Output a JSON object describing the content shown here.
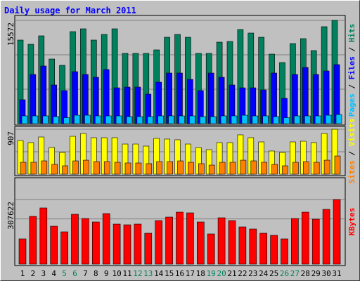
{
  "chart_data": {
    "type": "bar",
    "title": "Daily usage for March 2011",
    "legend_separator": " / ",
    "categories": [
      "1",
      "2",
      "3",
      "4",
      "5",
      "6",
      "7",
      "8",
      "9",
      "10",
      "11",
      "12",
      "13",
      "14",
      "15",
      "16",
      "17",
      "18",
      "19",
      "20",
      "21",
      "22",
      "23",
      "24",
      "25",
      "26",
      "27",
      "28",
      "29",
      "30",
      "31"
    ],
    "category_colors": [
      "#000000",
      "#000000",
      "#000000",
      "#000000",
      "#00805c",
      "#00805c",
      "#000000",
      "#000000",
      "#000000",
      "#000000",
      "#000000",
      "#00805c",
      "#00805c",
      "#000000",
      "#000000",
      "#000000",
      "#000000",
      "#000000",
      "#00805c",
      "#00805c",
      "#000000",
      "#000000",
      "#000000",
      "#000000",
      "#000000",
      "#00805c",
      "#00805c",
      "#000000",
      "#000000",
      "#000000",
      "#000000"
    ],
    "panels": [
      {
        "ylim": [
          0,
          15572
        ],
        "yticks": [
          15572
        ],
        "series": [
          {
            "name": "Hits",
            "color": "#00805c",
            "values": [
              12606,
              11970,
              13241,
              9746,
              8792,
              13877,
              14301,
              12606,
              13453,
              14301,
              10593,
              10593,
              10593,
              11123,
              13029,
              13453,
              13029,
              10593,
              10593,
              12288,
              12394,
              14195,
              13665,
              13029,
              10487,
              9216,
              12076,
              12818,
              11017,
              14619,
              15572
            ]
          },
          {
            "name": "Files",
            "color": "#0000ff",
            "values": [
              3602,
              7415,
              8686,
              5826,
              4979,
              7839,
              7415,
              6992,
              8157,
              5402,
              5508,
              5508,
              4449,
              6250,
              7627,
              7627,
              6674,
              4979,
              7627,
              6992,
              5826,
              5402,
              5402,
              5085,
              7627,
              3814,
              7415,
              8475,
              7415,
              7945,
              8898
            ]
          },
          {
            "name": "Pages",
            "color": "#00c0ff",
            "values": [
              1165,
              1165,
              1165,
              1060,
              900,
              1270,
              1270,
              1165,
              1165,
              1165,
              1060,
              1060,
              1060,
              1165,
              1165,
              1165,
              1165,
              1060,
              1060,
              1165,
              1165,
              1270,
              1165,
              1165,
              1060,
              900,
              1165,
              1165,
              1165,
              1270,
              1376
            ]
          }
        ]
      },
      {
        "ylim": [
          0,
          907
        ],
        "yticks": [
          907
        ],
        "series": [
          {
            "name": "Visits",
            "color": "#ffff00",
            "values": [
              680,
              638,
              751,
              539,
              439,
              765,
              822,
              737,
              737,
              737,
              609,
              609,
              567,
              723,
              709,
              695,
              609,
              539,
              496,
              638,
              638,
              794,
              737,
              652,
              468,
              439,
              652,
              666,
              638,
              822,
              907
            ]
          },
          {
            "name": "Sites",
            "color": "#ff8000",
            "values": [
              241,
              241,
              269,
              198,
              170,
              269,
              283,
              255,
              255,
              241,
              227,
              227,
              213,
              255,
              255,
              269,
              241,
              213,
              184,
              241,
              241,
              283,
              269,
              241,
              198,
              170,
              241,
              255,
              241,
              283,
              368
            ]
          }
        ]
      },
      {
        "ylim": [
          0,
          307622
        ],
        "yticks": [
          307622
        ],
        "series": [
          {
            "name": "KBytes",
            "color": "#ff0000",
            "values": [
              120374,
              227371,
              267497,
              180560,
              153810,
              237403,
              217341,
              200623,
              240747,
              190592,
              187248,
              190592,
              147122,
              207311,
              224028,
              247435,
              244091,
              200623,
              143778,
              220684,
              207311,
              177216,
              167186,
              147122,
              137091,
              120374,
              217341,
              247435,
              213997,
              260809,
              307622
            ]
          }
        ]
      }
    ]
  }
}
